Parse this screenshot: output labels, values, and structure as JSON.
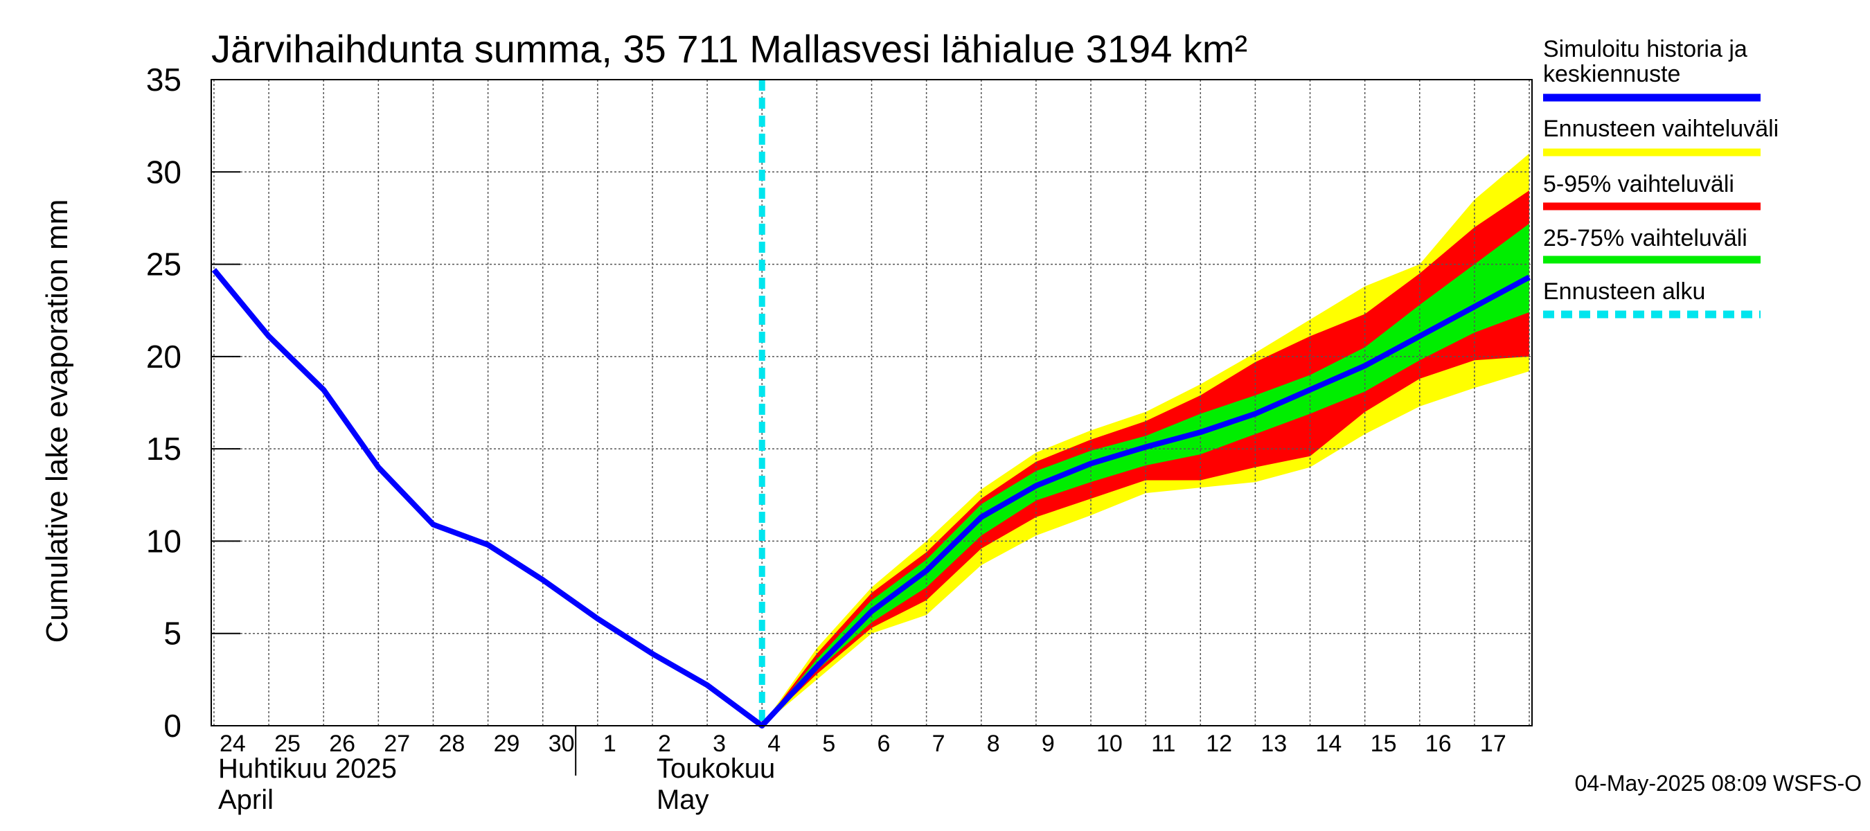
{
  "chart_data": {
    "type": "area",
    "title": "Järvihaihdunta summa, 35 711 Mallasvesi lähialue 3194 km²",
    "ylabel": "Cumulative lake evaporation   mm",
    "ylim": [
      0,
      35
    ],
    "yticks": [
      0,
      5,
      10,
      15,
      20,
      25,
      30,
      35
    ],
    "x_tick_labels": [
      "24",
      "25",
      "26",
      "27",
      "28",
      "29",
      "30",
      "1",
      "2",
      "3",
      "4",
      "5",
      "6",
      "7",
      "8",
      "9",
      "10",
      "11",
      "12",
      "13",
      "14",
      "15",
      "16",
      "17"
    ],
    "month_labels": [
      {
        "line1": "Huhtikuu  2025",
        "line2": "April",
        "at_day": 0
      },
      {
        "line1": "Toukokuu",
        "line2": "May",
        "at_day": 8
      }
    ],
    "forecast_start_day": 10,
    "history": {
      "name": "Simuloitu historia ja keskiennuste",
      "x": [
        0,
        1,
        2,
        3,
        4,
        5,
        6,
        7,
        8,
        9,
        10
      ],
      "y": [
        24.7,
        21.1,
        18.2,
        14.0,
        10.9,
        9.8,
        7.9,
        5.8,
        3.9,
        2.2,
        0.0
      ]
    },
    "forecast": {
      "x": [
        10,
        11,
        12,
        13,
        14,
        15,
        16,
        17,
        18,
        19,
        20,
        21,
        22,
        23,
        24
      ],
      "median": [
        0.0,
        3.2,
        6.2,
        8.4,
        11.3,
        13.0,
        14.2,
        15.1,
        15.9,
        16.9,
        18.2,
        19.5,
        21.1,
        22.7,
        24.3
      ],
      "min": [
        0.0,
        2.5,
        5.0,
        6.0,
        8.7,
        10.3,
        11.4,
        12.6,
        12.9,
        13.2,
        14.0,
        15.8,
        17.3,
        18.3,
        19.2
      ],
      "max": [
        0.0,
        4.2,
        7.5,
        10.0,
        12.8,
        14.8,
        16.0,
        17.0,
        18.5,
        20.2,
        22.0,
        23.8,
        25.0,
        28.5,
        31.0
      ],
      "p5": [
        0.0,
        2.8,
        5.3,
        6.8,
        9.6,
        11.3,
        12.3,
        13.3,
        13.3,
        14.0,
        14.6,
        17.0,
        18.8,
        19.8,
        20.0
      ],
      "p95": [
        0.0,
        3.9,
        7.2,
        9.4,
        12.3,
        14.3,
        15.5,
        16.5,
        17.9,
        19.7,
        21.1,
        22.3,
        24.5,
        27.0,
        29.0
      ],
      "p25": [
        0.0,
        3.0,
        5.6,
        7.5,
        10.3,
        12.2,
        13.2,
        14.1,
        14.7,
        15.8,
        16.9,
        18.1,
        19.8,
        21.3,
        22.4
      ],
      "p75": [
        0.0,
        3.6,
        6.8,
        9.0,
        12.0,
        13.8,
        14.9,
        15.7,
        16.9,
        17.9,
        19.0,
        20.5,
        22.8,
        25.0,
        27.2
      ]
    },
    "legend": [
      {
        "label": "Simuloitu historia ja keskiennuste",
        "color": "#0000ff",
        "style": "solid"
      },
      {
        "label": "Ennusteen vaihteluväli",
        "color": "#ffff00",
        "style": "solid"
      },
      {
        "label": "5-95% vaihteluväli",
        "color": "#ff0000",
        "style": "solid"
      },
      {
        "label": "25-75% vaihteluväli",
        "color": "#00ee00",
        "style": "solid"
      },
      {
        "label": "Ennusteen alku",
        "color": "#00e5ee",
        "style": "dashed"
      }
    ],
    "legend_position": "right",
    "grid": true,
    "footer": "04-May-2025 08:09 WSFS-O"
  }
}
